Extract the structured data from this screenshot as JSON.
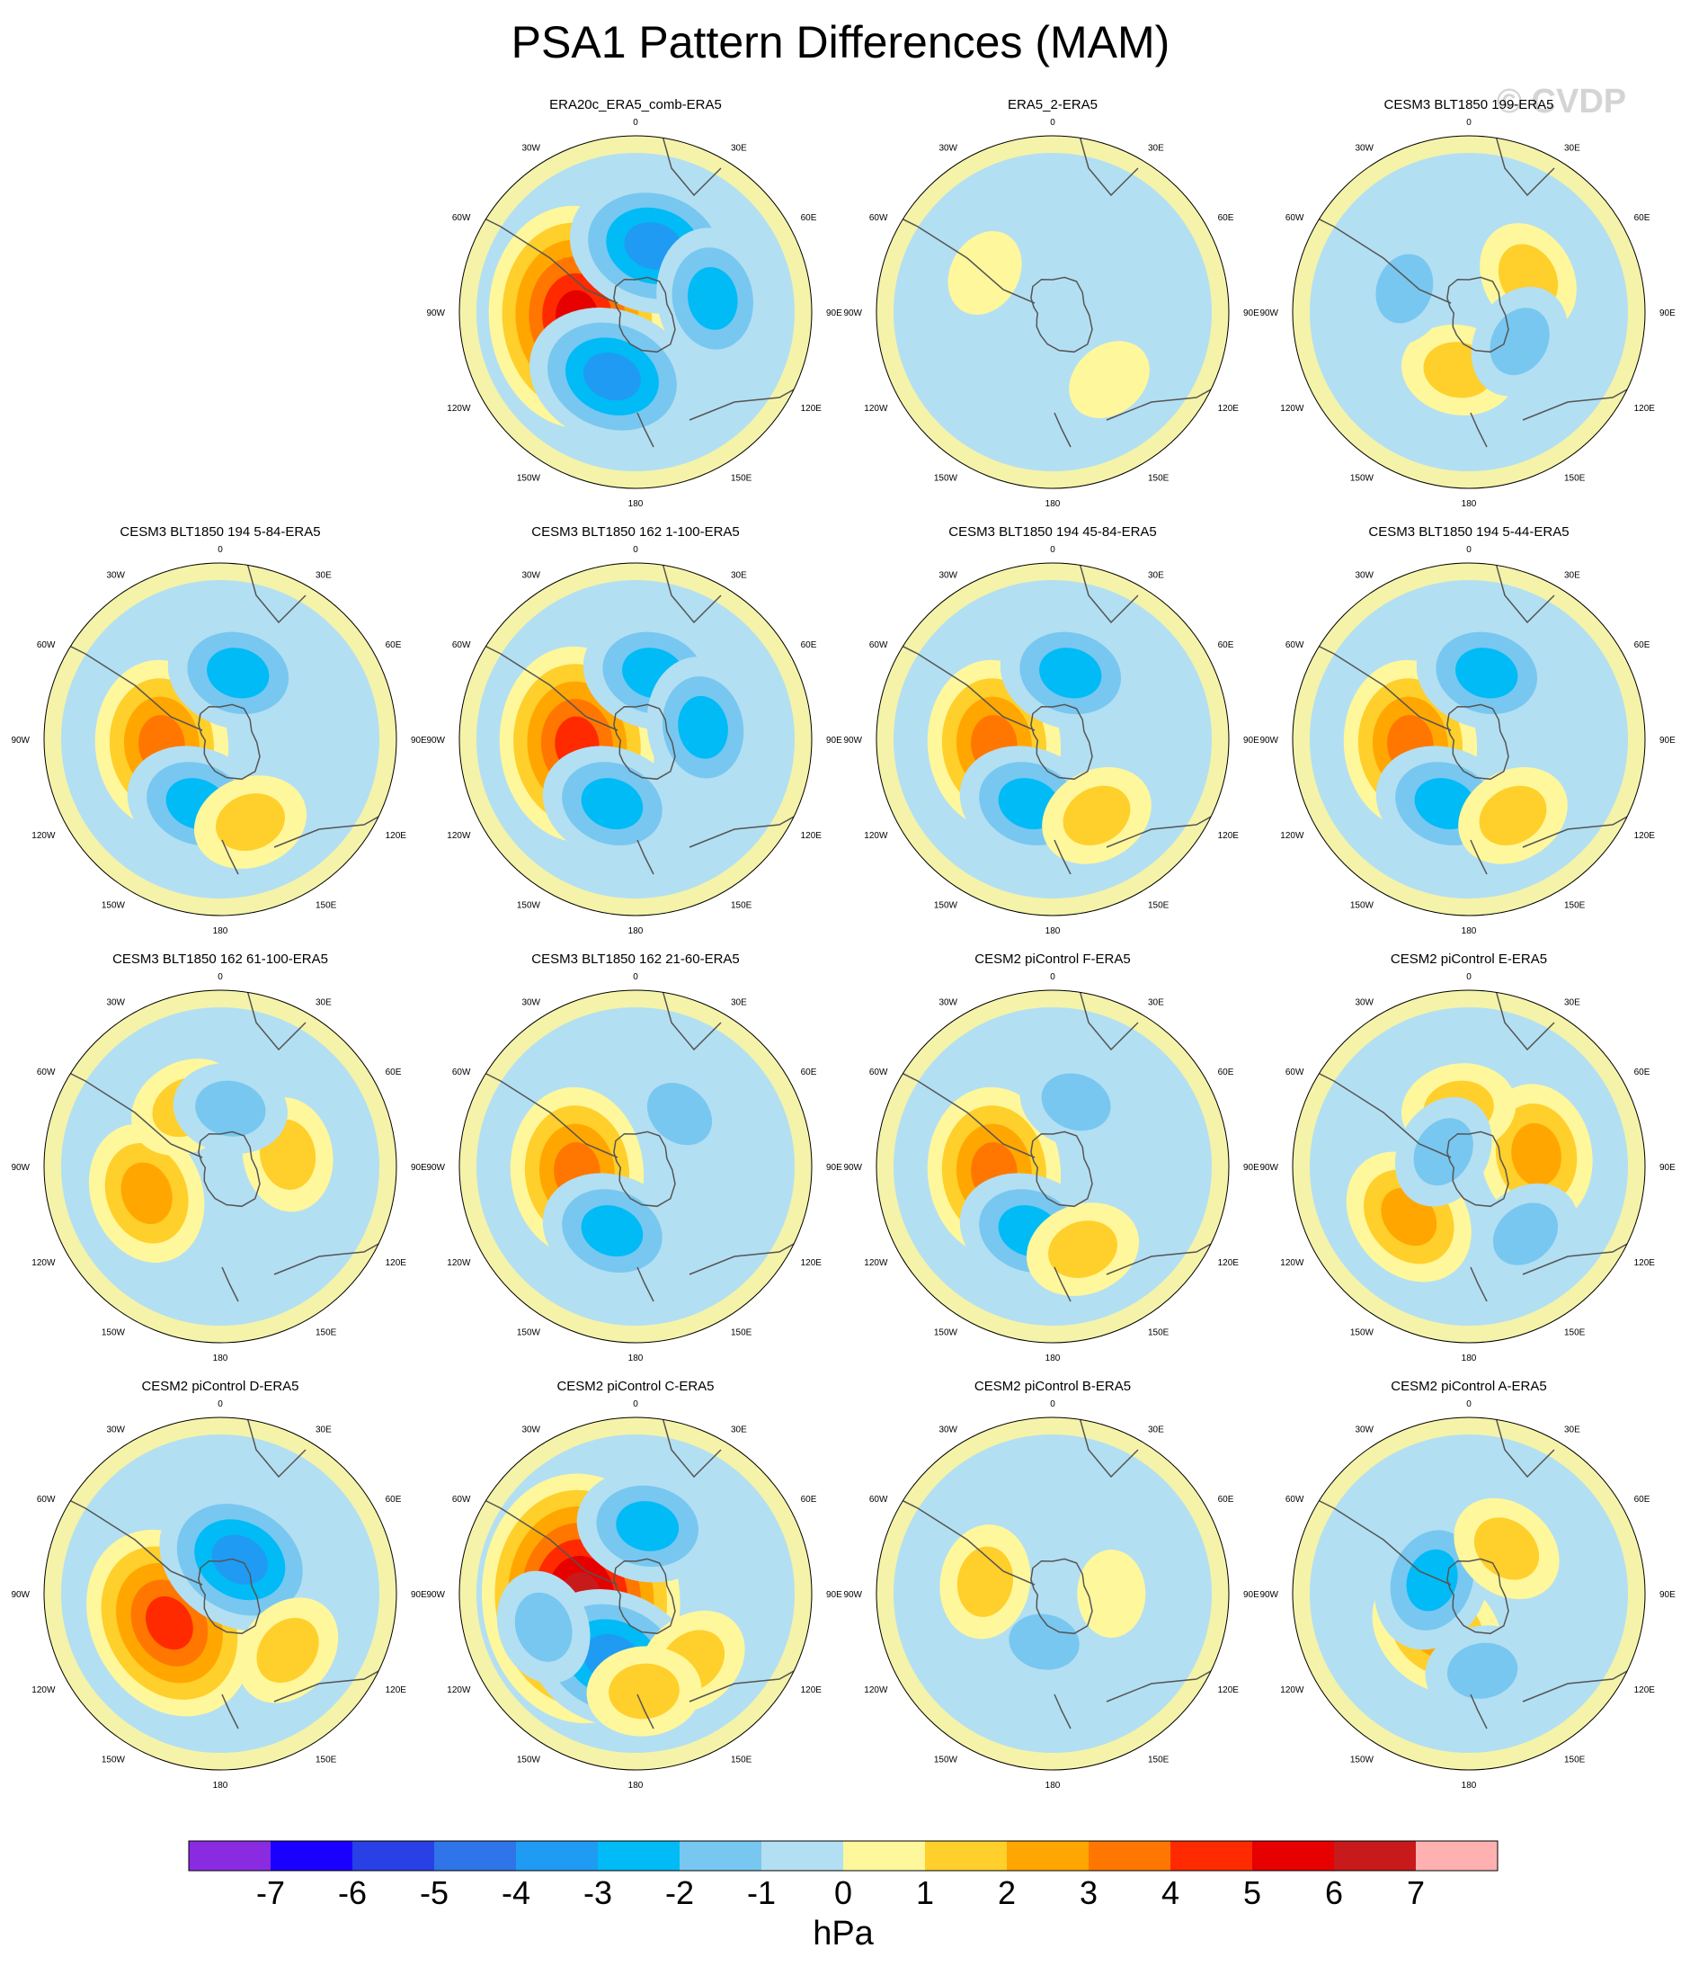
{
  "title": "PSA1 Pattern Differences (MAM)",
  "watermark": "© CVDP",
  "lon_labels": [
    "0",
    "30E",
    "60E",
    "90E",
    "120E",
    "150E",
    "180",
    "150W",
    "120W",
    "90W",
    "60W",
    "30W"
  ],
  "colors": {
    "ocean_line": "#555555",
    "frame": "#000000",
    "level_neg1": "#b3dff2",
    "level_neg2": "#78c7f0",
    "level_neg3": "#00bbf5",
    "level_neg4": "#1f9bf3",
    "level_pos1": "#fff79c",
    "level_pos2": "#ffcf2b",
    "level_pos3": "#ffa700"
  },
  "chart_data": {
    "type": "polar contour map (Southern Hemisphere)",
    "units": "hPa",
    "colorbar": {
      "label": "hPa",
      "tick_labels": [
        "-7",
        "-6",
        "-5",
        "-4",
        "-3",
        "-2",
        "-1",
        "0",
        "1",
        "2",
        "3",
        "4",
        "5",
        "6",
        "7"
      ],
      "colors": [
        "#8a2be2",
        "#1a00ff",
        "#2840e6",
        "#2f74e8",
        "#1f9bf3",
        "#00bbf5",
        "#78c7f0",
        "#b3dff2",
        "#fff79c",
        "#ffcf2b",
        "#ffa700",
        "#ff7700",
        "#ff2a00",
        "#e60000",
        "#c81a1a",
        "#ffb0b0"
      ]
    },
    "panels": [
      {
        "title": "ERA20c_ERA5_comb-ERA5",
        "row": 0,
        "col": 1,
        "features": [
          {
            "type": "positive",
            "peak": 5.5,
            "lon": -95,
            "lat": -60
          },
          {
            "type": "negative",
            "peak": -3.5,
            "lon": 15,
            "lat": -55
          },
          {
            "type": "negative",
            "peak": -3.5,
            "lon": -160,
            "lat": -55
          },
          {
            "type": "negative",
            "peak": -2.5,
            "lon": 80,
            "lat": -50
          }
        ]
      },
      {
        "title": "ERA5_2-ERA5",
        "row": 0,
        "col": 2,
        "features": [
          {
            "type": "positive",
            "peak": 0.8,
            "lon": -60,
            "lat": -50
          },
          {
            "type": "positive",
            "peak": 0.8,
            "lon": 140,
            "lat": -45
          },
          {
            "type": "negative",
            "peak": -0.8,
            "lon": 30,
            "lat": -55
          }
        ]
      },
      {
        "title": "CESM3 BLT1850 199-ERA5",
        "row": 0,
        "col": 3,
        "features": [
          {
            "type": "positive",
            "peak": 1.8,
            "lon": 60,
            "lat": -55
          },
          {
            "type": "positive",
            "peak": 1.8,
            "lon": -170,
            "lat": -60
          },
          {
            "type": "negative",
            "peak": -1.8,
            "lon": 120,
            "lat": -60
          },
          {
            "type": "negative",
            "peak": -1.2,
            "lon": -70,
            "lat": -55
          }
        ]
      },
      {
        "title": "CESM3 BLT1850 194 5-84-ERA5",
        "row": 1,
        "col": 0,
        "features": [
          {
            "type": "positive",
            "peak": 3.5,
            "lon": -95,
            "lat": -60
          },
          {
            "type": "negative",
            "peak": -2.5,
            "lon": 15,
            "lat": -55
          },
          {
            "type": "negative",
            "peak": -2.5,
            "lon": -160,
            "lat": -55
          },
          {
            "type": "positive",
            "peak": 1.5,
            "lon": 160,
            "lat": -45
          }
        ]
      },
      {
        "title": "CESM3 BLT1850 162 1-100-ERA5",
        "row": 1,
        "col": 1,
        "features": [
          {
            "type": "positive",
            "peak": 4.5,
            "lon": -95,
            "lat": -60
          },
          {
            "type": "negative",
            "peak": -2.5,
            "lon": 15,
            "lat": -55
          },
          {
            "type": "negative",
            "peak": -2.5,
            "lon": -160,
            "lat": -55
          },
          {
            "type": "negative",
            "peak": -2.5,
            "lon": 80,
            "lat": -55
          }
        ]
      },
      {
        "title": "CESM3 BLT1850 194 45-84-ERA5",
        "row": 1,
        "col": 2,
        "features": [
          {
            "type": "positive",
            "peak": 3.5,
            "lon": -95,
            "lat": -60
          },
          {
            "type": "negative",
            "peak": -2.5,
            "lon": 15,
            "lat": -55
          },
          {
            "type": "negative",
            "peak": -2.5,
            "lon": -160,
            "lat": -55
          },
          {
            "type": "positive",
            "peak": 1.5,
            "lon": 150,
            "lat": -45
          }
        ]
      },
      {
        "title": "CESM3 BLT1850 194 5-44-ERA5",
        "row": 1,
        "col": 3,
        "features": [
          {
            "type": "positive",
            "peak": 3.5,
            "lon": -95,
            "lat": -60
          },
          {
            "type": "negative",
            "peak": -2.5,
            "lon": 15,
            "lat": -55
          },
          {
            "type": "negative",
            "peak": -2.5,
            "lon": -160,
            "lat": -55
          },
          {
            "type": "positive",
            "peak": 1.5,
            "lon": 150,
            "lat": -45
          }
        ]
      },
      {
        "title": "CESM3 BLT1850 162 61-100-ERA5",
        "row": 2,
        "col": 0,
        "features": [
          {
            "type": "positive",
            "peak": 2.5,
            "lon": -110,
            "lat": -50
          },
          {
            "type": "positive",
            "peak": 1.5,
            "lon": 80,
            "lat": -55
          },
          {
            "type": "positive",
            "peak": 1.5,
            "lon": -30,
            "lat": -55
          },
          {
            "type": "negative",
            "peak": -1.5,
            "lon": 10,
            "lat": -60
          }
        ]
      },
      {
        "title": "CESM3 BLT1850 162 21-60-ERA5",
        "row": 2,
        "col": 1,
        "features": [
          {
            "type": "positive",
            "peak": 4.0,
            "lon": -95,
            "lat": -60
          },
          {
            "type": "negative",
            "peak": -2.5,
            "lon": -160,
            "lat": -55
          },
          {
            "type": "negative",
            "peak": -1.5,
            "lon": 40,
            "lat": -55
          }
        ]
      },
      {
        "title": "CESM2 piControl F-ERA5",
        "row": 2,
        "col": 2,
        "features": [
          {
            "type": "positive",
            "peak": 3.5,
            "lon": -95,
            "lat": -60
          },
          {
            "type": "negative",
            "peak": -2.5,
            "lon": -160,
            "lat": -55
          },
          {
            "type": "negative",
            "peak": -1.5,
            "lon": 20,
            "lat": -55
          },
          {
            "type": "positive",
            "peak": 1.5,
            "lon": 160,
            "lat": -45
          }
        ]
      },
      {
        "title": "CESM2 piControl E-ERA5",
        "row": 2,
        "col": 3,
        "features": [
          {
            "type": "positive",
            "peak": 2.5,
            "lon": 80,
            "lat": -55
          },
          {
            "type": "positive",
            "peak": 2.5,
            "lon": -130,
            "lat": -50
          },
          {
            "type": "positive",
            "peak": 2.0,
            "lon": -10,
            "lat": -60
          },
          {
            "type": "negative",
            "peak": -1.5,
            "lon": -60,
            "lat": -75
          },
          {
            "type": "negative",
            "peak": -1.5,
            "lon": 140,
            "lat": -45
          }
        ]
      },
      {
        "title": "CESM2 piControl D-ERA5",
        "row": 3,
        "col": 0,
        "features": [
          {
            "type": "positive",
            "peak": 4.5,
            "lon": -120,
            "lat": -60
          },
          {
            "type": "negative",
            "peak": -3.5,
            "lon": 30,
            "lat": -70
          },
          {
            "type": "positive",
            "peak": 1.5,
            "lon": 130,
            "lat": -45
          }
        ]
      },
      {
        "title": "CESM2 piControl C-ERA5",
        "row": 3,
        "col": 1,
        "features": [
          {
            "type": "positive",
            "peak": 6.5,
            "lon": -95,
            "lat": -62
          },
          {
            "type": "negative",
            "peak": -3.5,
            "lon": -160,
            "lat": -55
          },
          {
            "type": "negative",
            "peak": -2.5,
            "lon": 10,
            "lat": -55
          },
          {
            "type": "negative",
            "peak": -2.0,
            "lon": -110,
            "lat": -40
          },
          {
            "type": "positive",
            "peak": 1.5,
            "lon": 140,
            "lat": -45
          },
          {
            "type": "positive",
            "peak": 1.5,
            "lon": 175,
            "lat": -40
          }
        ]
      },
      {
        "title": "CESM2 piControl B-ERA5",
        "row": 3,
        "col": 2,
        "features": [
          {
            "type": "negative",
            "peak": -2.0,
            "lon": -170,
            "lat": -65
          },
          {
            "type": "positive",
            "peak": 1.5,
            "lon": -80,
            "lat": -55
          },
          {
            "type": "positive",
            "peak": 0.8,
            "lon": 90,
            "lat": -60
          }
        ]
      },
      {
        "title": "CESM2 piControl A-ERA5",
        "row": 3,
        "col": 3,
        "features": [
          {
            "type": "positive",
            "peak": 3.0,
            "lon": -140,
            "lat": -65
          },
          {
            "type": "negative",
            "peak": -2.5,
            "lon": -70,
            "lat": -70
          },
          {
            "type": "positive",
            "peak": 1.5,
            "lon": 40,
            "lat": -60
          },
          {
            "type": "negative",
            "peak": -1.5,
            "lon": 170,
            "lat": -50
          }
        ]
      }
    ]
  }
}
